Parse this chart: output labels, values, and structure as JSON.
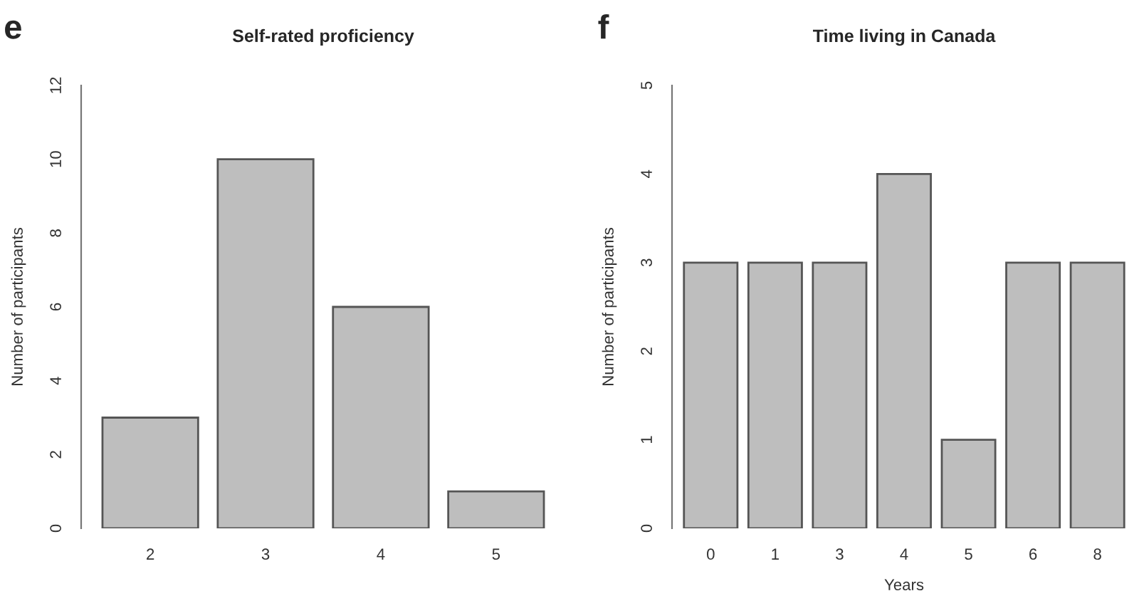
{
  "chart_data": [
    {
      "type": "bar",
      "title": "Self-rated proficiency",
      "ylabel": "Number of participants",
      "categories": [
        "2",
        "3",
        "4",
        "5"
      ],
      "values": [
        3,
        10,
        6,
        1
      ],
      "color": "#bebebe",
      "ylim": [
        0,
        12
      ],
      "yticks": [
        0,
        2,
        4,
        6,
        8,
        10,
        12
      ],
      "grid": false,
      "legend": false,
      "annotations": [
        "e"
      ]
    },
    {
      "type": "bar",
      "title": "Time living in Canada",
      "xlabel": "Years",
      "ylabel": "Number of participants",
      "categories": [
        "0",
        "1",
        "3",
        "4",
        "5",
        "6",
        "8"
      ],
      "values": [
        3,
        3,
        3,
        4,
        1,
        3,
        3
      ],
      "color": "#bebebe",
      "ylim": [
        0,
        5
      ],
      "yticks": [
        0,
        1,
        2,
        3,
        4,
        5
      ],
      "grid": false,
      "legend": false,
      "annotations": [
        "f"
      ]
    }
  ]
}
